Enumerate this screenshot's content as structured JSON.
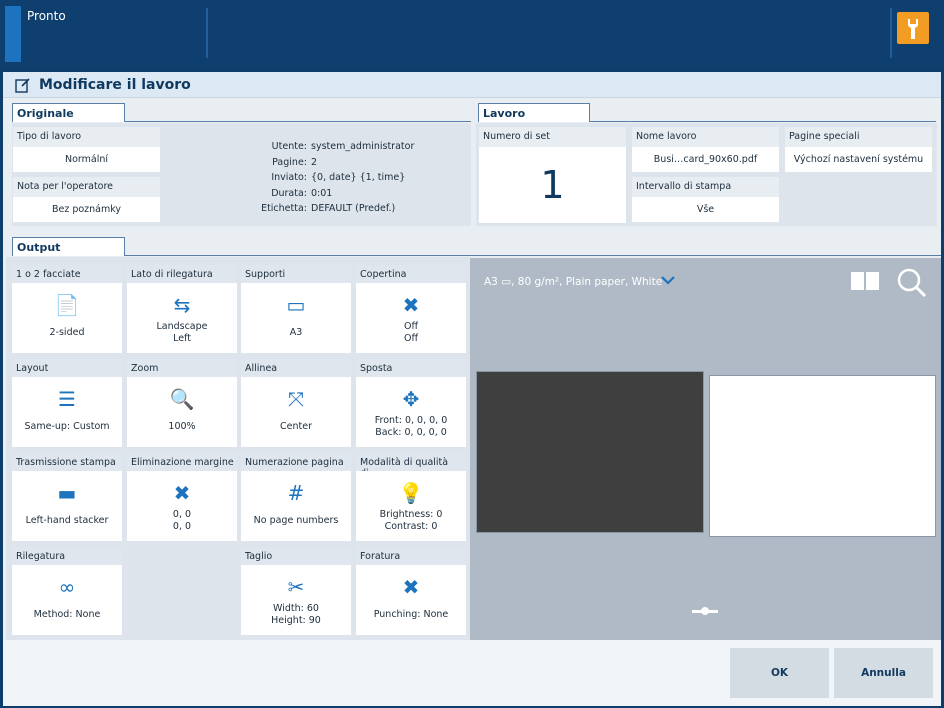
{
  "topbar": {
    "status": "Pronto",
    "wrench_icon": "wrench-icon"
  },
  "dialog": {
    "title": "Modificare il lavoro"
  },
  "originale": {
    "tab": "Originale",
    "tipo_label": "Tipo di lavoro",
    "tipo_value": "Normální",
    "nota_label": "Nota per l'operatore",
    "nota_value": "Bez poznámky",
    "info": [
      {
        "k": "Utente:",
        "v": "system_administrator"
      },
      {
        "k": "Pagine:",
        "v": "2"
      },
      {
        "k": "Inviato:",
        "v": "{0, date} {1, time}"
      },
      {
        "k": "Durata:",
        "v": "0:01"
      },
      {
        "k": "Etichetta:",
        "v": "DEFAULT (Predef.)"
      }
    ]
  },
  "lavoro": {
    "tab": "Lavoro",
    "numero_label": "Numero di set",
    "numero_value": "1",
    "nome_label": "Nome lavoro",
    "nome_value": "Busi…card_90x60.pdf",
    "pagine_label": "Pagine speciali",
    "pagine_value": "Výchozí nastavení systému",
    "intervallo_label": "Intervallo di stampa",
    "intervallo_value": "Vše"
  },
  "output": {
    "tab": "Output",
    "tiles": [
      {
        "h": "1 o 2 facciate",
        "l1": "2-sided",
        "l2": ""
      },
      {
        "h": "Lato di rilegatura",
        "l1": "Landscape",
        "l2": "Left"
      },
      {
        "h": "Supporti",
        "l1": "A3",
        "l2": ""
      },
      {
        "h": "Copertina",
        "l1": "Off",
        "l2": "Off"
      },
      {
        "h": "Layout",
        "l1": "Same-up: Custom",
        "l2": ""
      },
      {
        "h": "Zoom",
        "l1": "100%",
        "l2": ""
      },
      {
        "h": "Allinea",
        "l1": "Center",
        "l2": ""
      },
      {
        "h": "Sposta",
        "l1": "Front: 0, 0, 0, 0",
        "l2": "Back: 0, 0, 0, 0"
      },
      {
        "h": "Trasmissione stampa",
        "l1": "Left-hand stacker",
        "l2": ""
      },
      {
        "h": "Eliminazione margine",
        "l1": "0, 0",
        "l2": "0, 0"
      },
      {
        "h": "Numerazione pagina",
        "l1": "No page numbers",
        "l2": ""
      },
      {
        "h": "Modalità di qualità di...",
        "l1": "Brightness: 0",
        "l2": "Contrast: 0"
      },
      {
        "h": "Rilegatura",
        "l1": "Method: None",
        "l2": ""
      },
      {
        "h": "Taglio",
        "l1": "Width: 60",
        "l2": "Height: 90"
      },
      {
        "h": "Foratura",
        "l1": "Punching: None",
        "l2": ""
      }
    ]
  },
  "preview": {
    "media": "A3 ▭, 80 g/m², Plain paper, White"
  },
  "buttons": {
    "ok": "OK",
    "cancel": "Annulla"
  }
}
